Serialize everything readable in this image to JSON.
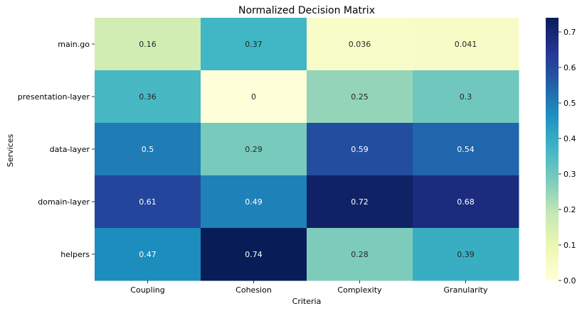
{
  "chart_data": {
    "type": "heatmap",
    "title": "Normalized Decision Matrix",
    "xlabel": "Criteria",
    "ylabel": "Services",
    "x_categories": [
      "Coupling",
      "Cohesion",
      "Complexity",
      "Granularity"
    ],
    "y_categories": [
      "main.go",
      "presentation-layer",
      "data-layer",
      "domain-layer",
      "helpers"
    ],
    "values": [
      [
        0.16,
        0.37,
        0.036,
        0.041
      ],
      [
        0.36,
        0,
        0.25,
        0.3
      ],
      [
        0.5,
        0.29,
        0.59,
        0.54
      ],
      [
        0.61,
        0.49,
        0.72,
        0.68
      ],
      [
        0.47,
        0.74,
        0.28,
        0.39
      ]
    ],
    "value_labels": [
      [
        "0.16",
        "0.37",
        "0.036",
        "0.041"
      ],
      [
        "0.36",
        "0",
        "0.25",
        "0.3"
      ],
      [
        "0.5",
        "0.29",
        "0.59",
        "0.54"
      ],
      [
        "0.61",
        "0.49",
        "0.72",
        "0.68"
      ],
      [
        "0.47",
        "0.74",
        "0.28",
        "0.39"
      ]
    ],
    "colorbar": {
      "min": 0,
      "max": 0.74,
      "ticks": [
        0.0,
        0.1,
        0.2,
        0.3,
        0.4,
        0.5,
        0.6,
        0.7
      ],
      "tick_labels": [
        "0.0",
        "0.1",
        "0.2",
        "0.3",
        "0.4",
        "0.5",
        "0.6",
        "0.7"
      ]
    },
    "colormap": "YlGnBu"
  }
}
